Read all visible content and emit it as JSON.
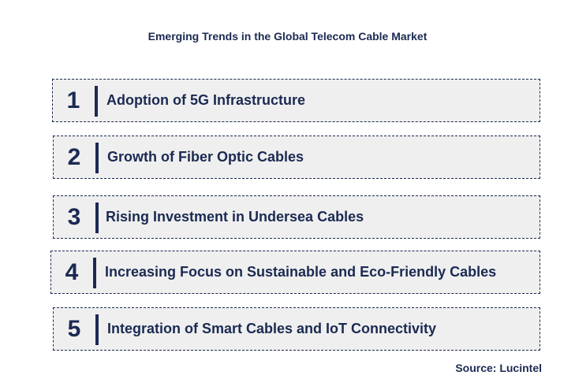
{
  "title": "Emerging Trends in the Global Telecom Cable Market",
  "trends": [
    {
      "number": "1",
      "label": "Adoption of 5G Infrastructure"
    },
    {
      "number": "2",
      "label": "Growth of Fiber Optic Cables"
    },
    {
      "number": "3",
      "label": "Rising Investment in Undersea Cables"
    },
    {
      "number": "4",
      "label": "Increasing Focus on Sustainable and Eco-Friendly Cables"
    },
    {
      "number": "5",
      "label": "Integration of Smart Cables and IoT Connectivity"
    }
  ],
  "source": "Source: Lucintel",
  "colors": {
    "text": "#1b2a52",
    "box_fill": "#efefef"
  }
}
